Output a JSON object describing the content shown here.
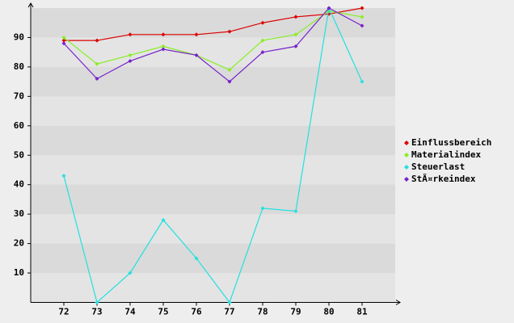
{
  "chart_data": {
    "type": "line",
    "categories": [
      "72",
      "73",
      "74",
      "75",
      "76",
      "77",
      "78",
      "79",
      "80",
      "81"
    ],
    "series": [
      {
        "name": "Einflussbereich",
        "color": "#dd0000",
        "values": [
          89,
          89,
          91,
          91,
          91,
          92,
          95,
          97,
          98,
          100
        ]
      },
      {
        "name": "Materialindex",
        "color": "#88ee22",
        "values": [
          90,
          81,
          84,
          87,
          84,
          79,
          89,
          91,
          99,
          97
        ]
      },
      {
        "name": "Steuerlast",
        "color": "#22e0e0",
        "values": [
          43,
          0,
          10,
          28,
          15,
          0,
          32,
          31,
          100,
          75
        ]
      },
      {
        "name": "StÃ¤rkeindex",
        "color": "#7722cc",
        "values": [
          88,
          76,
          82,
          86,
          84,
          75,
          85,
          87,
          100,
          94
        ]
      }
    ],
    "ylim": [
      0,
      100
    ],
    "yticks": [
      10,
      20,
      30,
      40,
      50,
      60,
      70,
      80,
      90
    ],
    "legend": "right"
  }
}
